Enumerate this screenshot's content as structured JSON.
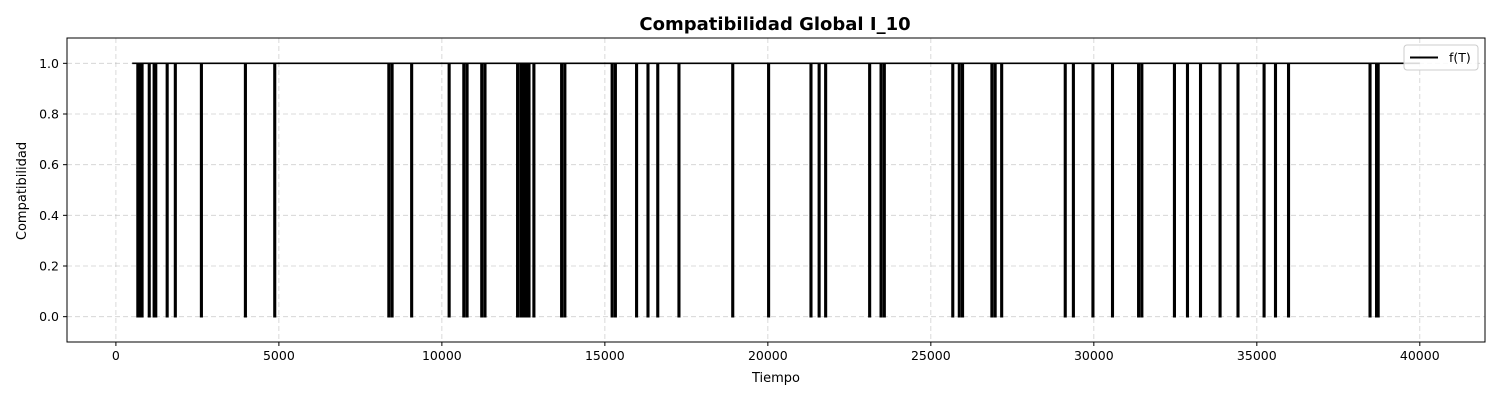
{
  "chart_data": {
    "type": "line",
    "title": "Compatibilidad Global I_10",
    "xlabel": "Tiempo",
    "ylabel": "Compatibilidad",
    "xlim": [
      -1500,
      42000
    ],
    "ylim": [
      -0.1,
      1.1
    ],
    "xticks": [
      0,
      5000,
      10000,
      15000,
      20000,
      25000,
      30000,
      35000,
      40000
    ],
    "yticks": [
      0.0,
      0.2,
      0.4,
      0.6,
      0.8,
      1.0
    ],
    "xtick_labels": [
      "0",
      "5000",
      "10000",
      "15000",
      "20000",
      "25000",
      "30000",
      "35000",
      "40000"
    ],
    "ytick_labels": [
      "0.0",
      "0.2",
      "0.4",
      "0.6",
      "0.8",
      "1.0"
    ],
    "grid": true,
    "legend_position": "top-right",
    "series": [
      {
        "name": "f(T)",
        "color": "#000000",
        "x_start": 500,
        "x_end": 40000,
        "baseline": 1.0,
        "drop_to": 0.0,
        "drops": [
          650,
          700,
          780,
          1000,
          1150,
          1200,
          1550,
          1800,
          2600,
          3950,
          4850,
          8350,
          8450,
          9050,
          10200,
          10650,
          10750,
          11200,
          11300,
          12300,
          12400,
          12450,
          12500,
          12550,
          12600,
          12650,
          12800,
          13650,
          13750,
          15200,
          15300,
          15950,
          16300,
          16600,
          17250,
          18900,
          20000,
          21300,
          21550,
          21750,
          23100,
          23450,
          23550,
          25650,
          25850,
          25950,
          26850,
          26950,
          27150,
          29100,
          29350,
          29950,
          30550,
          31350,
          31450,
          32450,
          32850,
          33250,
          33850,
          34400,
          35200,
          35550,
          35950,
          38450,
          38650,
          38700
        ]
      }
    ]
  }
}
